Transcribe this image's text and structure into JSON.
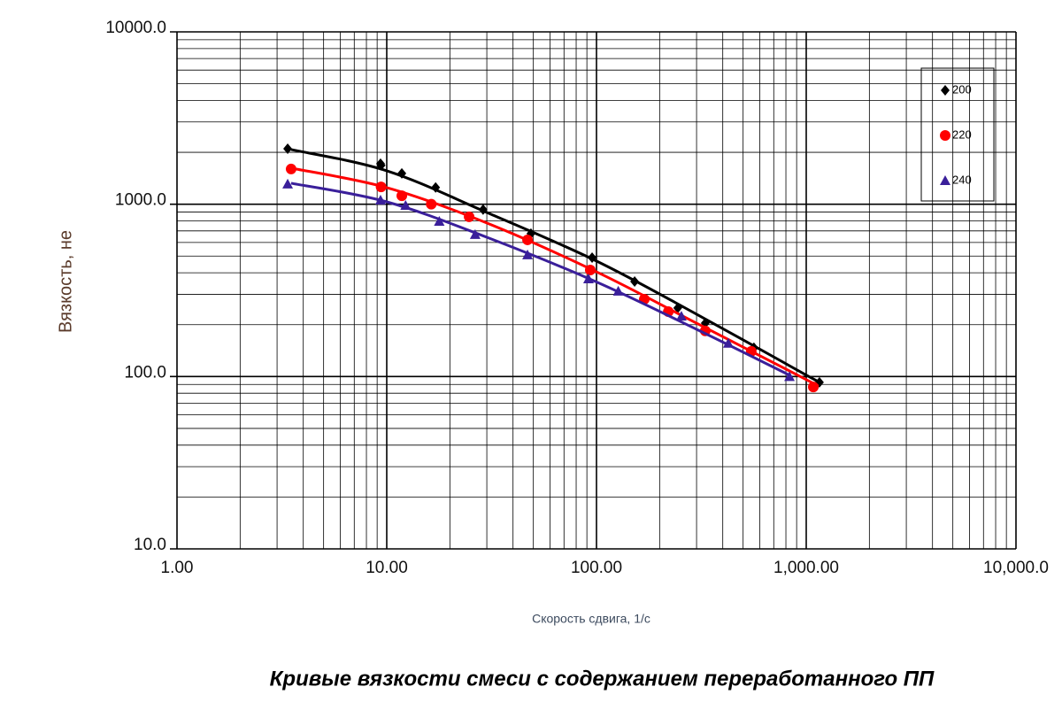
{
  "chart_data": {
    "type": "scatter",
    "title": "Кривые вязкости смеси с содержанием переработанного ПП",
    "x_label": "Скорость сдвига, 1/с",
    "y_label": "Вязкость, не",
    "log_x": true,
    "log_y": true,
    "grid": true,
    "legend": "upper right",
    "xlim": [
      1,
      10000
    ],
    "ylim": [
      10,
      10000
    ],
    "xticks": [
      {
        "value": 1,
        "label": "1.00"
      },
      {
        "value": 10,
        "label": "10.00"
      },
      {
        "value": 100,
        "label": "100.00"
      },
      {
        "value": 1000,
        "label": "1,000.00"
      },
      {
        "value": 10000,
        "label": "10,000.0"
      }
    ],
    "yticks": [
      {
        "value": 10,
        "label": "10.0"
      },
      {
        "value": 100,
        "label": "100.0"
      },
      {
        "value": 1000,
        "label": "1000.0"
      },
      {
        "value": 10000,
        "label": "10000.0"
      }
    ],
    "series": [
      {
        "name": "200",
        "color": "#000000",
        "marker": "diamond",
        "x": [
          3.37,
          9.34,
          9.4,
          11.8,
          17.1,
          28.8,
          48.7,
          95.3,
          152,
          244,
          330,
          563,
          1156
        ],
        "values": [
          2100,
          1720,
          1680,
          1510,
          1250,
          930,
          675,
          490,
          356,
          250,
          204,
          147,
          92.5
        ],
        "fit": {
          "x": [
            3.5,
            10,
            30,
            100,
            300,
            1000,
            1150
          ],
          "values": [
            2075,
            1563,
            896,
            468,
            230,
            102,
            93.6
          ]
        }
      },
      {
        "name": "220",
        "color": "#ff0000",
        "marker": "circle",
        "x": [
          3.5,
          9.4,
          11.8,
          16.3,
          24.7,
          46.9,
          93.4,
          169,
          220,
          330,
          547,
          1081
        ],
        "values": [
          1600,
          1260,
          1120,
          1000,
          845,
          621,
          415,
          281,
          238,
          184,
          140,
          87
        ],
        "fit": {
          "x": [
            3.5,
            10,
            30,
            100,
            300,
            1000,
            1100
          ],
          "values": [
            1620,
            1248,
            778,
            405,
            204,
            96,
            90
          ]
        }
      },
      {
        "name": "240",
        "color": "#3a1f9a",
        "marker": "triangle",
        "x": [
          3.37,
          9.34,
          12.3,
          17.8,
          26.4,
          46.9,
          91.6,
          127,
          254,
          425,
          832
        ],
        "values": [
          1310,
          1057,
          985,
          796,
          667,
          508,
          369,
          313,
          224,
          156,
          100
        ],
        "fit": {
          "x": [
            3.5,
            10,
            30,
            100,
            300,
            830
          ],
          "values": [
            1324,
            1032,
            643,
            354,
            188,
            102
          ]
        }
      }
    ]
  }
}
